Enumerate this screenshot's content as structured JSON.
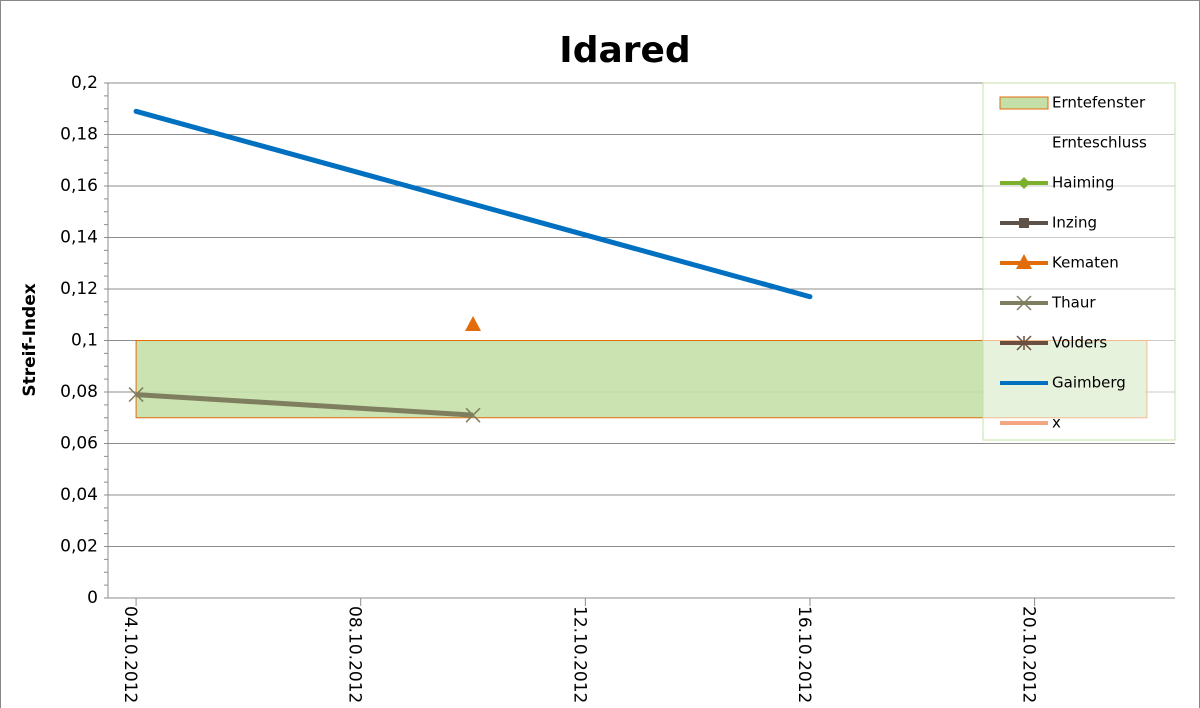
{
  "chart_data": {
    "type": "line",
    "title": "Idared",
    "y_label": "Streif-Index",
    "xlim": [
      "2012-10-03T12:00",
      "2012-10-22T12:00"
    ],
    "xticks": [
      {
        "value": "2012-10-04",
        "label": "04.10.2012"
      },
      {
        "value": "2012-10-08",
        "label": "08.10.2012"
      },
      {
        "value": "2012-10-12",
        "label": "12.10.2012"
      },
      {
        "value": "2012-10-16",
        "label": "16.10.2012"
      },
      {
        "value": "2012-10-20",
        "label": "20.10.2012"
      }
    ],
    "ylim": [
      0,
      0.2
    ],
    "yticks": [
      0,
      {
        "value": 0.02,
        "label": "0,02"
      },
      {
        "value": 0.04,
        "label": "0,04"
      },
      {
        "value": 0.06,
        "label": "0,06"
      },
      {
        "value": 0.08,
        "label": "0,08"
      },
      {
        "value": 0.1,
        "label": "0,1"
      },
      {
        "value": 0.12,
        "label": "0,12"
      },
      {
        "value": 0.14,
        "label": "0,14"
      },
      {
        "value": 0.16,
        "label": "0,16"
      },
      {
        "value": 0.18,
        "label": "0,18"
      },
      {
        "value": 0.2,
        "label": "0,2"
      }
    ],
    "grid": true,
    "legend": "upper right",
    "window": {
      "name": "Erntefenster",
      "color": "#c4e0a8",
      "edge": "#e36c0a",
      "x": [
        "2012-10-04",
        "2012-10-22"
      ],
      "y": [
        0.07,
        0.1
      ]
    },
    "series": [
      {
        "name": "Ernteschluss",
        "x": [],
        "values": []
      },
      {
        "name": "Haiming",
        "color": "#7cb02c",
        "marker": "diamond",
        "x": [],
        "values": []
      },
      {
        "name": "Inzing",
        "color": "#5f5249",
        "marker": "square",
        "x": [],
        "values": []
      },
      {
        "name": "Kematen",
        "color": "#e36c0a",
        "marker": "triangle",
        "x": [
          "2012-10-10"
        ],
        "values": [
          0.106
        ]
      },
      {
        "name": "Thaur",
        "color": "#7f7f5f",
        "marker": "x",
        "x": [
          "2012-10-04",
          "2012-10-10"
        ],
        "values": [
          0.079,
          0.071
        ]
      },
      {
        "name": "Volders",
        "color": "#6b4e3d",
        "marker": "star",
        "x": [],
        "values": []
      },
      {
        "name": "Gaimberg",
        "color": "#0070c0",
        "marker": "none",
        "x": [
          "2012-10-04",
          "2012-10-16"
        ],
        "values": [
          0.189,
          0.117
        ]
      },
      {
        "name": "x",
        "color": "#f4a582",
        "marker": "none",
        "x": [],
        "values": []
      }
    ]
  }
}
